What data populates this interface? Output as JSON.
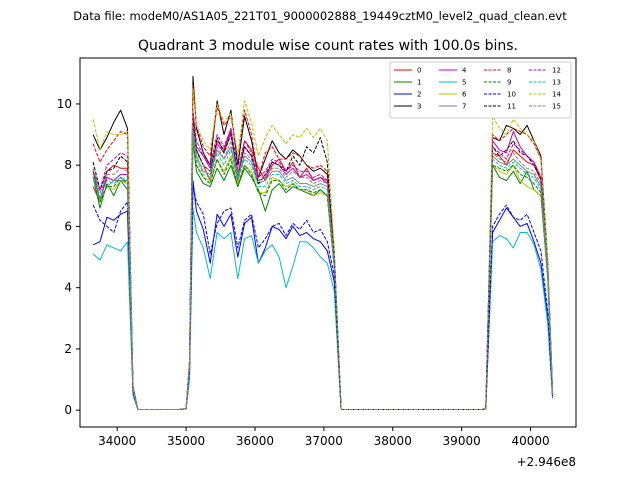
{
  "chart_data": {
    "type": "line",
    "suptitle": "Data file: modeM0/AS1A05_221T01_9000002888_19449cztM0_level2_quad_clean.evt",
    "title": "Quadrant 3 module wise count rates with 100.0s bins.",
    "xlabel": "",
    "ylabel": "",
    "x_offset_label": "+2.946e8",
    "xlim": [
      33460,
      40660
    ],
    "ylim": [
      -0.55,
      11.5
    ],
    "x_ticks": [
      34000,
      35000,
      36000,
      37000,
      38000,
      39000,
      40000
    ],
    "x_tick_labels": [
      "34000",
      "35000",
      "36000",
      "37000",
      "38000",
      "39000",
      "40000"
    ],
    "y_ticks": [
      0,
      2,
      4,
      6,
      8,
      10
    ],
    "y_tick_labels": [
      "0",
      "2",
      "4",
      "6",
      "8",
      "10"
    ],
    "grid": false,
    "legend": "top-right",
    "x": [
      33650,
      33750,
      33850,
      33950,
      34050,
      34150,
      34230,
      34300,
      34400,
      34500,
      34600,
      34700,
      34800,
      34900,
      35000,
      35050,
      35100,
      35150,
      35250,
      35350,
      35450,
      35550,
      35650,
      35750,
      35850,
      35950,
      36050,
      36150,
      36250,
      36350,
      36450,
      36550,
      36650,
      36750,
      36850,
      36950,
      37050,
      37150,
      37250,
      37350,
      37500,
      37700,
      37900,
      38100,
      38300,
      38500,
      38700,
      38900,
      39100,
      39300,
      39350,
      39450,
      39550,
      39650,
      39750,
      39850,
      39950,
      40050,
      40150,
      40250,
      40320
    ],
    "series": [
      {
        "name": "0",
        "color": "#ff0000",
        "dash": false,
        "values": [
          7.3,
          6.8,
          7.8,
          8.0,
          7.9,
          7.9,
          0.7,
          0.02,
          0.02,
          0.02,
          0.02,
          0.02,
          0.02,
          0.02,
          0.05,
          1.5,
          9.4,
          8.5,
          8.0,
          7.5,
          8.8,
          8.5,
          9.2,
          7.5,
          8.8,
          8.5,
          7.9,
          7.5,
          8.0,
          8.2,
          7.8,
          8.1,
          7.6,
          7.9,
          7.5,
          7.6,
          7.5,
          5.0,
          0.02,
          0.02,
          0.02,
          0.02,
          0.02,
          0.02,
          0.02,
          0.02,
          0.02,
          0.02,
          0.02,
          0.02,
          0.05,
          8.4,
          8.3,
          8.0,
          8.5,
          8.3,
          8.1,
          8.0,
          7.5,
          4.5,
          0.5
        ]
      },
      {
        "name": "1",
        "color": "#008000",
        "dash": false,
        "values": [
          7.6,
          6.6,
          7.4,
          7.0,
          7.5,
          7.2,
          0.6,
          0.02,
          0.02,
          0.02,
          0.02,
          0.02,
          0.02,
          0.02,
          0.05,
          1.3,
          8.8,
          7.8,
          7.4,
          7.3,
          7.9,
          7.5,
          8.0,
          7.3,
          7.9,
          7.6,
          7.2,
          6.5,
          7.2,
          7.4,
          7.1,
          7.3,
          7.2,
          7.1,
          7.0,
          7.2,
          7.0,
          4.7,
          0.02,
          0.02,
          0.02,
          0.02,
          0.02,
          0.02,
          0.02,
          0.02,
          0.02,
          0.02,
          0.02,
          0.02,
          0.05,
          8.0,
          7.6,
          7.5,
          7.8,
          7.4,
          7.8,
          7.2,
          7.0,
          4.3,
          0.5
        ]
      },
      {
        "name": "2",
        "color": "#0000ff",
        "dash": false,
        "values": [
          5.4,
          5.5,
          6.3,
          6.2,
          6.4,
          6.5,
          0.5,
          0.02,
          0.02,
          0.02,
          0.02,
          0.02,
          0.02,
          0.02,
          0.04,
          1.1,
          7.5,
          6.5,
          5.9,
          4.8,
          6.4,
          6.0,
          6.4,
          5.0,
          6.1,
          6.3,
          4.8,
          5.3,
          6.0,
          5.9,
          5.6,
          6.0,
          5.7,
          5.8,
          5.6,
          5.5,
          5.2,
          4.2,
          0.02,
          0.02,
          0.02,
          0.02,
          0.02,
          0.02,
          0.02,
          0.02,
          0.02,
          0.02,
          0.02,
          0.02,
          0.04,
          5.8,
          6.2,
          6.6,
          6.3,
          6.0,
          6.1,
          5.5,
          4.8,
          3.0,
          0.4
        ]
      },
      {
        "name": "3",
        "color": "#000000",
        "dash": false,
        "values": [
          9.0,
          8.5,
          8.9,
          9.4,
          9.8,
          9.2,
          0.8,
          0.02,
          0.02,
          0.02,
          0.02,
          0.02,
          0.02,
          0.02,
          0.05,
          1.6,
          10.9,
          9.2,
          8.4,
          8.0,
          10.1,
          9.0,
          9.8,
          8.0,
          9.6,
          8.8,
          7.6,
          8.2,
          8.8,
          8.4,
          8.2,
          8.5,
          8.3,
          8.0,
          7.8,
          7.9,
          7.7,
          5.2,
          0.02,
          0.02,
          0.02,
          0.02,
          0.02,
          0.02,
          0.02,
          0.02,
          0.02,
          0.02,
          0.02,
          0.02,
          0.05,
          8.9,
          8.8,
          9.3,
          9.2,
          9.0,
          9.3,
          8.8,
          8.3,
          4.8,
          0.6
        ]
      },
      {
        "name": "4",
        "color": "#bf00bf",
        "dash": false,
        "values": [
          7.8,
          6.9,
          7.6,
          7.5,
          7.7,
          7.7,
          0.7,
          0.02,
          0.02,
          0.02,
          0.02,
          0.02,
          0.02,
          0.02,
          0.05,
          1.5,
          9.7,
          8.6,
          8.3,
          7.9,
          8.7,
          8.4,
          9.1,
          7.7,
          8.6,
          8.3,
          7.5,
          7.6,
          8.1,
          8.0,
          7.7,
          7.9,
          7.6,
          7.7,
          7.5,
          7.6,
          7.4,
          5.0,
          0.02,
          0.02,
          0.02,
          0.02,
          0.02,
          0.02,
          0.02,
          0.02,
          0.02,
          0.02,
          0.02,
          0.02,
          0.05,
          8.8,
          8.5,
          8.4,
          9.1,
          8.6,
          8.3,
          8.1,
          7.6,
          4.6,
          0.5
        ]
      },
      {
        "name": "5",
        "color": "#00bfbf",
        "dash": false,
        "values": [
          5.1,
          4.9,
          5.4,
          5.3,
          5.2,
          5.5,
          0.5,
          0.02,
          0.02,
          0.02,
          0.02,
          0.02,
          0.02,
          0.02,
          0.04,
          1.0,
          6.6,
          5.8,
          5.3,
          4.3,
          5.8,
          5.6,
          5.8,
          4.3,
          5.6,
          5.7,
          4.8,
          5.2,
          5.4,
          5.0,
          4.0,
          4.7,
          5.5,
          5.5,
          5.3,
          5.0,
          4.8,
          3.9,
          0.02,
          0.02,
          0.02,
          0.02,
          0.02,
          0.02,
          0.02,
          0.02,
          0.02,
          0.02,
          0.02,
          0.02,
          0.04,
          5.5,
          5.7,
          5.6,
          5.3,
          5.8,
          5.8,
          5.4,
          4.6,
          2.8,
          0.4
        ]
      },
      {
        "name": "6",
        "color": "#bfbf00",
        "dash": false,
        "values": [
          7.7,
          6.8,
          7.3,
          7.2,
          7.5,
          7.4,
          0.7,
          0.02,
          0.02,
          0.02,
          0.02,
          0.02,
          0.02,
          0.02,
          0.05,
          1.4,
          8.9,
          8.0,
          7.6,
          7.5,
          8.2,
          7.8,
          8.3,
          7.4,
          8.0,
          7.8,
          7.1,
          7.1,
          7.6,
          7.5,
          7.3,
          7.4,
          7.2,
          7.2,
          7.0,
          7.1,
          7.0,
          4.8,
          0.02,
          0.02,
          0.02,
          0.02,
          0.02,
          0.02,
          0.02,
          0.02,
          0.02,
          0.02,
          0.02,
          0.02,
          0.05,
          8.0,
          7.8,
          7.7,
          8.0,
          7.5,
          7.3,
          7.2,
          7.0,
          4.3,
          0.5
        ]
      },
      {
        "name": "7",
        "color": "#808080",
        "dash": false,
        "values": [
          7.6,
          6.9,
          7.3,
          7.5,
          7.5,
          7.5,
          0.7,
          0.02,
          0.02,
          0.02,
          0.02,
          0.02,
          0.02,
          0.02,
          0.05,
          1.5,
          9.2,
          8.3,
          7.8,
          7.7,
          8.5,
          8.2,
          8.6,
          7.6,
          8.3,
          8.1,
          7.4,
          7.5,
          7.8,
          7.8,
          7.5,
          7.6,
          7.4,
          7.4,
          7.3,
          7.4,
          7.3,
          4.9,
          0.02,
          0.02,
          0.02,
          0.02,
          0.02,
          0.02,
          0.02,
          0.02,
          0.02,
          0.02,
          0.02,
          0.02,
          0.05,
          8.3,
          8.1,
          8.0,
          8.2,
          8.0,
          7.8,
          7.7,
          7.3,
          4.4,
          0.5
        ]
      },
      {
        "name": "8",
        "color": "#ff0000",
        "dash": true,
        "values": [
          8.7,
          8.1,
          8.5,
          8.8,
          9.1,
          9.0,
          0.8,
          0.02,
          0.02,
          0.02,
          0.02,
          0.02,
          0.02,
          0.02,
          0.05,
          1.6,
          10.6,
          9.3,
          8.6,
          8.3,
          9.9,
          9.3,
          9.6,
          8.3,
          9.8,
          9.0,
          7.6,
          8.4,
          8.6,
          8.2,
          8.2,
          8.4,
          8.3,
          8.0,
          7.9,
          8.0,
          7.8,
          5.1,
          0.02,
          0.02,
          0.02,
          0.02,
          0.02,
          0.02,
          0.02,
          0.02,
          0.02,
          0.02,
          0.02,
          0.02,
          0.05,
          9.0,
          8.8,
          9.0,
          9.2,
          9.1,
          9.0,
          8.7,
          8.2,
          4.7,
          0.6
        ]
      },
      {
        "name": "9",
        "color": "#008000",
        "dash": true,
        "values": [
          7.8,
          6.8,
          7.3,
          7.3,
          7.6,
          7.4,
          0.7,
          0.02,
          0.02,
          0.02,
          0.02,
          0.02,
          0.02,
          0.02,
          0.05,
          1.4,
          9.0,
          8.0,
          7.6,
          7.4,
          8.2,
          7.7,
          8.2,
          7.3,
          8.0,
          7.7,
          7.1,
          7.0,
          7.5,
          7.5,
          7.2,
          7.4,
          7.2,
          7.2,
          7.1,
          7.2,
          7.0,
          4.7,
          0.02,
          0.02,
          0.02,
          0.02,
          0.02,
          0.02,
          0.02,
          0.02,
          0.02,
          0.02,
          0.02,
          0.02,
          0.05,
          8.0,
          7.9,
          7.8,
          8.0,
          7.7,
          7.6,
          7.4,
          7.1,
          4.3,
          0.5
        ]
      },
      {
        "name": "10",
        "color": "#0000ff",
        "dash": true,
        "values": [
          6.7,
          6.2,
          6.0,
          5.8,
          6.5,
          6.8,
          0.6,
          0.02,
          0.02,
          0.02,
          0.02,
          0.02,
          0.02,
          0.02,
          0.04,
          1.2,
          7.3,
          6.8,
          6.4,
          5.1,
          6.1,
          6.5,
          6.6,
          5.3,
          6.2,
          6.4,
          5.3,
          5.6,
          6.0,
          6.1,
          5.7,
          6.1,
          5.9,
          6.2,
          5.8,
          5.9,
          5.5,
          4.4,
          0.02,
          0.02,
          0.02,
          0.02,
          0.02,
          0.02,
          0.02,
          0.02,
          0.02,
          0.02,
          0.02,
          0.02,
          0.04,
          6.0,
          6.4,
          6.7,
          6.3,
          6.2,
          6.4,
          5.8,
          5.2,
          3.2,
          0.4
        ]
      },
      {
        "name": "11",
        "color": "#000000",
        "dash": true,
        "values": [
          8.1,
          7.2,
          7.8,
          7.9,
          8.3,
          8.1,
          0.7,
          0.02,
          0.02,
          0.02,
          0.02,
          0.02,
          0.02,
          0.02,
          0.05,
          1.5,
          9.5,
          8.5,
          8.0,
          7.8,
          8.9,
          8.4,
          9.0,
          7.7,
          8.6,
          8.3,
          7.4,
          7.7,
          8.1,
          8.0,
          7.8,
          8.3,
          8.0,
          8.6,
          8.4,
          8.9,
          8.1,
          5.0,
          0.02,
          0.02,
          0.02,
          0.02,
          0.02,
          0.02,
          0.02,
          0.02,
          0.02,
          0.02,
          0.02,
          0.02,
          0.05,
          8.6,
          8.3,
          8.5,
          8.8,
          8.4,
          8.3,
          8.0,
          7.6,
          4.6,
          0.5
        ]
      },
      {
        "name": "12",
        "color": "#bf00bf",
        "dash": true,
        "values": [
          7.8,
          7.2,
          8.0,
          8.2,
          8.4,
          8.3,
          0.7,
          0.02,
          0.02,
          0.02,
          0.02,
          0.02,
          0.02,
          0.02,
          0.05,
          1.5,
          9.8,
          8.8,
          8.3,
          8.0,
          9.0,
          8.6,
          9.2,
          7.9,
          8.8,
          8.4,
          7.6,
          7.8,
          8.2,
          8.1,
          7.8,
          8.0,
          7.8,
          7.8,
          7.6,
          7.7,
          7.5,
          5.0,
          0.02,
          0.02,
          0.02,
          0.02,
          0.02,
          0.02,
          0.02,
          0.02,
          0.02,
          0.02,
          0.02,
          0.02,
          0.05,
          8.6,
          8.4,
          8.2,
          8.7,
          8.5,
          8.3,
          8.1,
          7.6,
          4.6,
          0.5
        ]
      },
      {
        "name": "13",
        "color": "#00bfbf",
        "dash": true,
        "values": [
          7.6,
          6.9,
          7.5,
          7.4,
          7.6,
          7.5,
          0.7,
          0.02,
          0.02,
          0.02,
          0.02,
          0.02,
          0.02,
          0.02,
          0.05,
          1.4,
          9.1,
          8.2,
          7.7,
          7.6,
          8.4,
          8.0,
          8.5,
          7.5,
          8.2,
          8.0,
          7.3,
          7.3,
          7.7,
          7.7,
          7.4,
          7.5,
          7.3,
          7.3,
          7.2,
          7.3,
          7.2,
          4.8,
          0.02,
          0.02,
          0.02,
          0.02,
          0.02,
          0.02,
          0.02,
          0.02,
          0.02,
          0.02,
          0.02,
          0.02,
          0.05,
          8.2,
          8.0,
          7.9,
          8.1,
          7.9,
          7.7,
          7.6,
          7.2,
          4.4,
          0.5
        ]
      },
      {
        "name": "14",
        "color": "#bfbf00",
        "dash": true,
        "values": [
          9.5,
          8.5,
          9.1,
          9.0,
          9.0,
          9.1,
          0.8,
          0.02,
          0.02,
          0.02,
          0.02,
          0.02,
          0.02,
          0.02,
          0.05,
          1.6,
          10.5,
          9.3,
          8.8,
          8.5,
          10.0,
          9.4,
          9.7,
          8.3,
          10.1,
          9.4,
          8.3,
          8.9,
          9.3,
          9.0,
          8.7,
          9.0,
          8.9,
          9.2,
          8.9,
          9.2,
          8.8,
          5.3,
          0.02,
          0.02,
          0.02,
          0.02,
          0.02,
          0.02,
          0.02,
          0.02,
          0.02,
          0.02,
          0.02,
          0.02,
          0.05,
          9.6,
          9.2,
          9.0,
          9.5,
          9.2,
          9.0,
          8.8,
          8.2,
          4.8,
          0.6
        ]
      },
      {
        "name": "15",
        "color": "#808080",
        "dash": true,
        "values": [
          7.9,
          7.1,
          7.7,
          7.7,
          7.9,
          7.8,
          0.7,
          0.02,
          0.02,
          0.02,
          0.02,
          0.02,
          0.02,
          0.02,
          0.05,
          1.5,
          9.3,
          8.4,
          8.0,
          7.8,
          8.6,
          8.2,
          8.8,
          7.7,
          8.4,
          8.2,
          7.5,
          7.6,
          7.9,
          7.9,
          7.6,
          7.8,
          7.6,
          7.6,
          7.4,
          7.5,
          7.4,
          4.9,
          0.02,
          0.02,
          0.02,
          0.02,
          0.02,
          0.02,
          0.02,
          0.02,
          0.02,
          0.02,
          0.02,
          0.02,
          0.05,
          8.4,
          8.2,
          8.1,
          8.4,
          8.1,
          7.9,
          7.8,
          7.4,
          4.5,
          0.5
        ]
      }
    ]
  }
}
